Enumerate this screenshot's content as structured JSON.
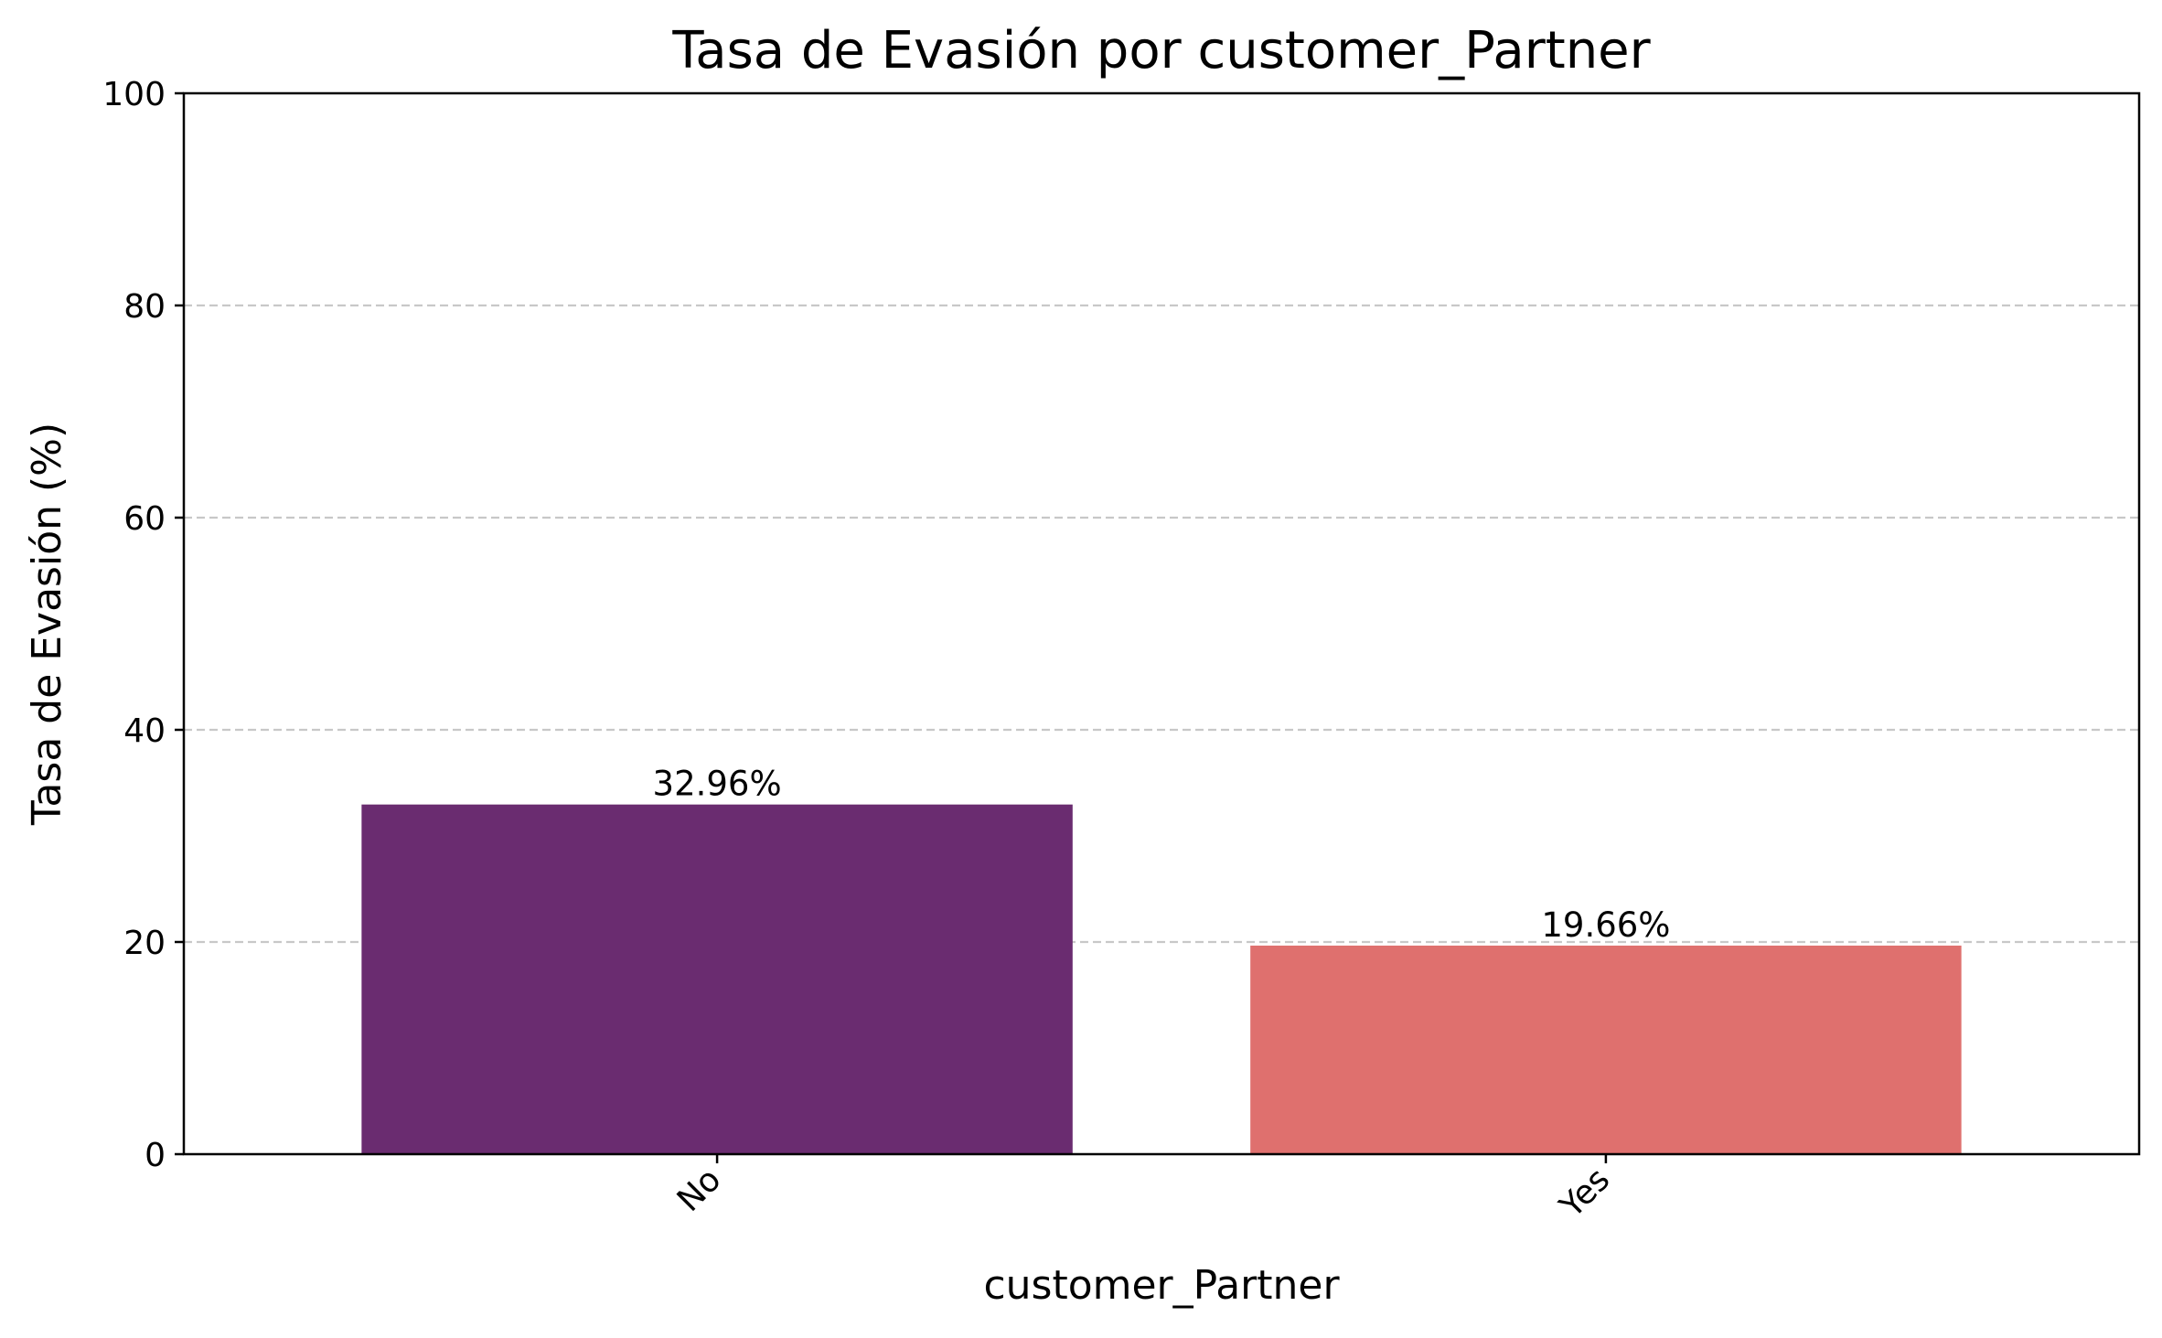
{
  "chart_data": {
    "type": "bar",
    "title": "Tasa de Evasión por customer_Partner",
    "xlabel": "customer_Partner",
    "ylabel": "Tasa de Evasión (%)",
    "categories": [
      "No",
      "Yes"
    ],
    "values": [
      32.96,
      19.66
    ],
    "value_labels": [
      "32.96%",
      "19.66%"
    ],
    "colors": [
      "#6a2c70",
      "#df706e"
    ],
    "ylim": [
      0,
      100
    ],
    "yticks": [
      0,
      20,
      40,
      60,
      80,
      100
    ],
    "ytick_labels": [
      "0",
      "20",
      "40",
      "60",
      "80",
      "100"
    ],
    "grid": "y-dashed",
    "grid_color": "#c8c8c8",
    "legend": "none"
  }
}
